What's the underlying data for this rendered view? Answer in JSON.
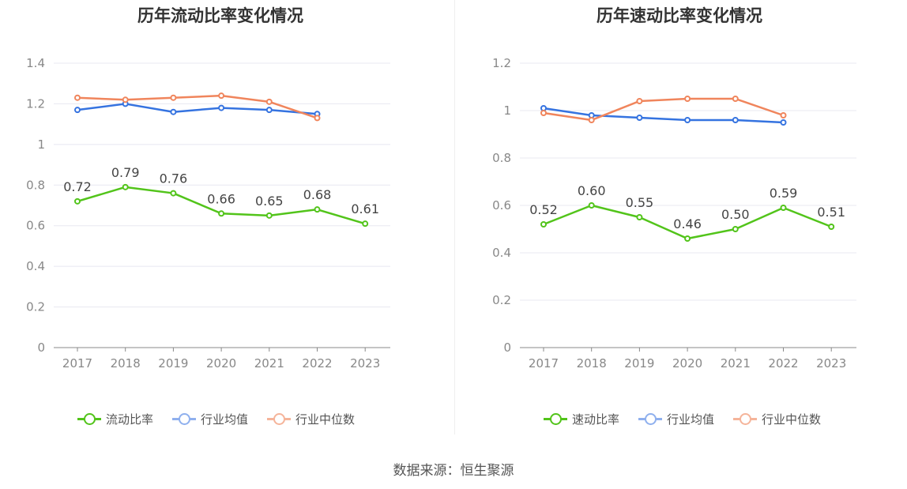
{
  "source": "数据来源：恒生聚源",
  "colors": {
    "ratio": "#52c41a",
    "avg": "#3573e0",
    "median": "#f0855c",
    "grid": "#e8e8f0",
    "axis": "#888888",
    "tick": "#888888"
  },
  "chart_data": [
    {
      "type": "line",
      "title": "历年流动比率变化情况",
      "categories": [
        "2017",
        "2018",
        "2019",
        "2020",
        "2021",
        "2022",
        "2023"
      ],
      "ylim": [
        0,
        1.4
      ],
      "yticks": [
        "0",
        "0.2",
        "0.4",
        "0.6",
        "0.8",
        "1",
        "1.2",
        "1.4"
      ],
      "grid": true,
      "legend_position": "bottom",
      "series": [
        {
          "name": "流动比率",
          "color": "#52c41a",
          "labeled": true,
          "values": [
            0.72,
            0.79,
            0.76,
            0.66,
            0.65,
            0.68,
            0.61
          ],
          "labels": [
            "0.72",
            "0.79",
            "0.76",
            "0.66",
            "0.65",
            "0.68",
            "0.61"
          ]
        },
        {
          "name": "行业均值",
          "color": "#3573e0",
          "labeled": false,
          "values": [
            1.17,
            1.2,
            1.16,
            1.18,
            1.17,
            1.15,
            null
          ]
        },
        {
          "name": "行业中位数",
          "color": "#f0855c",
          "labeled": false,
          "values": [
            1.23,
            1.22,
            1.23,
            1.24,
            1.21,
            1.13,
            null
          ]
        }
      ]
    },
    {
      "type": "line",
      "title": "历年速动比率变化情况",
      "categories": [
        "2017",
        "2018",
        "2019",
        "2020",
        "2021",
        "2022",
        "2023"
      ],
      "ylim": [
        0,
        1.2
      ],
      "yticks": [
        "0",
        "0.2",
        "0.4",
        "0.6",
        "0.8",
        "1",
        "1.2"
      ],
      "grid": true,
      "legend_position": "bottom",
      "series": [
        {
          "name": "速动比率",
          "color": "#52c41a",
          "labeled": true,
          "values": [
            0.52,
            0.6,
            0.55,
            0.46,
            0.5,
            0.59,
            0.51
          ],
          "labels": [
            "0.52",
            "0.60",
            "0.55",
            "0.46",
            "0.50",
            "0.59",
            "0.51"
          ]
        },
        {
          "name": "行业均值",
          "color": "#3573e0",
          "labeled": false,
          "values": [
            1.01,
            0.98,
            0.97,
            0.96,
            0.96,
            0.95,
            null
          ]
        },
        {
          "name": "行业中位数",
          "color": "#f0855c",
          "labeled": false,
          "values": [
            0.99,
            0.96,
            1.04,
            1.05,
            1.05,
            0.98,
            null
          ]
        }
      ]
    }
  ]
}
